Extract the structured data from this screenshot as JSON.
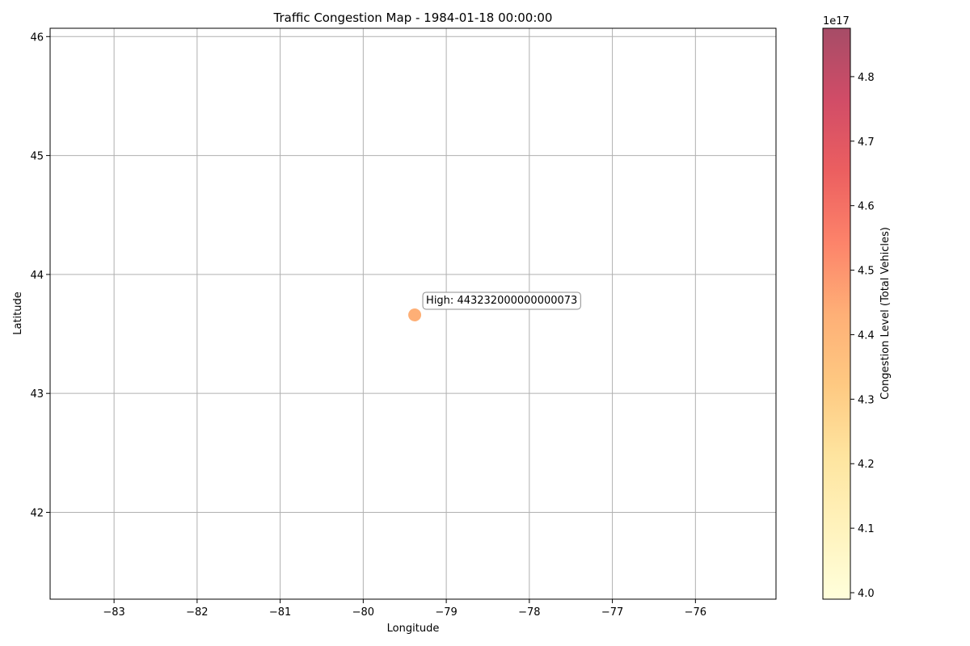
{
  "chart_data": {
    "type": "scatter",
    "title": "Traffic Congestion Map - 1984-01-18 00:00:00",
    "xlabel": "Longitude",
    "ylabel": "Latitude",
    "xlim": [
      -83.77,
      -75.03
    ],
    "ylim": [
      41.27,
      46.07
    ],
    "xticks": [
      -83,
      -82,
      -81,
      -80,
      -79,
      -78,
      -77,
      -76
    ],
    "yticks": [
      42,
      43,
      44,
      45,
      46
    ],
    "grid": true,
    "points": [
      {
        "x": -79.38,
        "y": 43.66,
        "value": 4.43232e+17
      }
    ],
    "annotation": {
      "text": "High: 443232000000000073",
      "x": -79.38,
      "y": 43.66
    },
    "colorbar": {
      "label": "Congestion Level (Total Vehicles)",
      "offset_label": "1e17",
      "range": [
        3.99,
        4.875
      ],
      "ticks": [
        4.0,
        4.1,
        4.2,
        4.3,
        4.4,
        4.5,
        4.6,
        4.7,
        4.8
      ],
      "colormap": [
        "#ffffcc",
        "#ffeda0",
        "#fed976",
        "#feb24c",
        "#fd8d3c",
        "#fc4e2a",
        "#e31a1c",
        "#bd0026",
        "#800026"
      ],
      "alpha": 0.7
    }
  }
}
